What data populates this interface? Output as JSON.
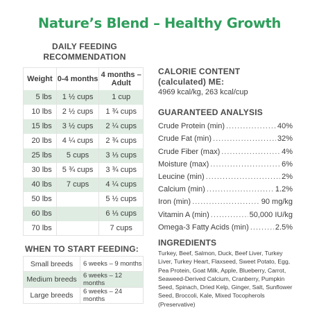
{
  "title": "Nature’s Blend – Healthy Growth",
  "daily_feeding": {
    "heading_line1": "DAILY FEEDING",
    "heading_line2": "RECOMMENDATION",
    "columns": [
      "Weight",
      "0-4 months",
      "4 months – Adult"
    ],
    "column_header_adult_line1": "4 months –",
    "column_header_adult_line2": "Adult",
    "rows": [
      {
        "weight": "5 lbs",
        "puppy": "1 ½ cups",
        "adult": "1  cup"
      },
      {
        "weight": "10 lbs",
        "puppy": "2 ½ cups",
        "adult": "1 ¾ cups"
      },
      {
        "weight": "15 lbs",
        "puppy": "3 ½ cups",
        "adult": "2 ¼ cups"
      },
      {
        "weight": "20 lbs",
        "puppy": "4 ¼ cups",
        "adult": "2 ¾ cups"
      },
      {
        "weight": "25 lbs",
        "puppy": "5 cups",
        "adult": "3 ⅓ cups"
      },
      {
        "weight": "30 lbs",
        "puppy": "5 ¾ cups",
        "adult": "3 ¾ cups"
      },
      {
        "weight": "40 lbs",
        "puppy": "7 cups",
        "adult": "4 ¼ cups"
      },
      {
        "weight": "50 lbs",
        "puppy": "",
        "adult": "5 ½ cups"
      },
      {
        "weight": "60 lbs",
        "puppy": "",
        "adult": "6 ⅓ cups"
      },
      {
        "weight": "70 lbs",
        "puppy": "",
        "adult": "7 cups"
      }
    ]
  },
  "when_to_start": {
    "heading": "WHEN TO START FEEDING:",
    "rows": [
      {
        "breed": "Small breeds",
        "range": "6 weeks – 9 months"
      },
      {
        "breed": "Medium breeds",
        "range": "6 weeks – 12 months"
      },
      {
        "breed": "Large breeds",
        "range": "6 weeks – 24 months"
      }
    ]
  },
  "calorie": {
    "heading_line1": "CALORIE CONTENT",
    "heading_line2": "(calculated) ME:",
    "value": "4969 kcal/kg, 263 kcal/cup"
  },
  "guaranteed_analysis": {
    "heading": "GUARANTEED ANALYSIS",
    "items": [
      {
        "label": "Crude Protein (min)",
        "value": "40%"
      },
      {
        "label": "Crude Fat (min)",
        "value": "32%"
      },
      {
        "label": "Crude Fiber (max)",
        "value": "4%"
      },
      {
        "label": "Moisture (max)",
        "value": "6%"
      },
      {
        "label": "Leucine (min)",
        "value": "2%"
      },
      {
        "label": "Calcium (min)",
        "value": "1.2%"
      },
      {
        "label": "Iron (min)",
        "value": "90 mg/kg"
      },
      {
        "label": "Vitamin A (min)",
        "value": "50,000 IU/kg"
      },
      {
        "label": "Omega-3 Fatty Acids (min)",
        "value": "2.5%"
      }
    ]
  },
  "ingredients": {
    "heading": "INGREDIENTS",
    "text": "Turkey, Beef, Salmon, Duck, Beef Liver, Turkey Liver, Turkey Heart, Flaxseed, Sweet Potato, Egg, Pea Protein, Goat Milk, Apple, Blueberry, Carrot, Seaweed-Derived Calcium, Cranberry, Pumpkin Seed, Spinach, Dried Kelp, Ginger, Salt, Sunflower Seed, Broccoli, Kale, Mixed Tocopherols (Preservative)"
  },
  "colors": {
    "title_green": "#2e9e5b",
    "row_shade": "#dfece2",
    "heading_gray": "#4a4a4a"
  }
}
